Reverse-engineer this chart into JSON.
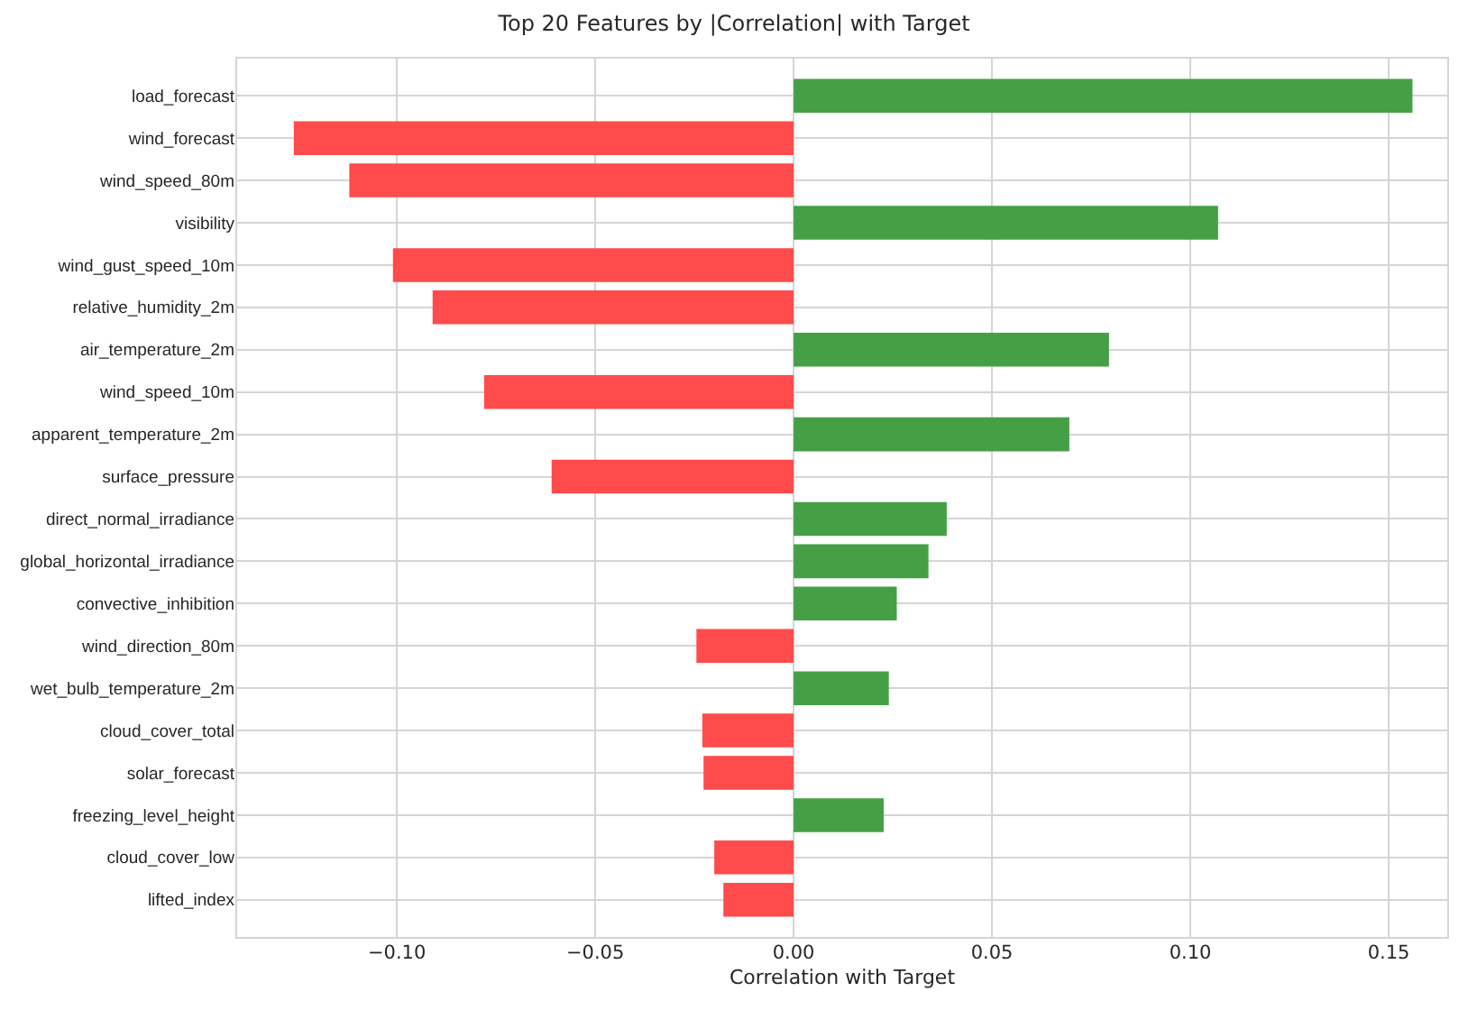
{
  "chart_data": {
    "type": "bar",
    "orientation": "horizontal",
    "title": "Top 20 Features by |Correlation| with Target",
    "xlabel": "Correlation with Target",
    "categories": [
      "load_forecast",
      "wind_forecast",
      "wind_speed_80m",
      "visibility",
      "wind_gust_speed_10m",
      "relative_humidity_2m",
      "air_temperature_2m",
      "wind_speed_10m",
      "apparent_temperature_2m",
      "surface_pressure",
      "direct_normal_irradiance",
      "global_horizontal_irradiance",
      "convective_inhibition",
      "wind_direction_80m",
      "wet_bulb_temperature_2m",
      "cloud_cover_total",
      "solar_forecast",
      "freezing_level_height",
      "cloud_cover_low",
      "lifted_index"
    ],
    "values": [
      0.156,
      -0.126,
      -0.112,
      0.107,
      -0.101,
      -0.091,
      0.0795,
      -0.078,
      0.0695,
      -0.061,
      0.0386,
      0.034,
      0.026,
      -0.0245,
      0.024,
      -0.023,
      -0.0227,
      0.0227,
      -0.02,
      -0.0177
    ],
    "colors": [
      "#45a045",
      "#ff4b4b",
      "#ff4b4b",
      "#45a045",
      "#ff4b4b",
      "#ff4b4b",
      "#45a045",
      "#ff4b4b",
      "#45a045",
      "#ff4b4b",
      "#45a045",
      "#45a045",
      "#45a045",
      "#ff4b4b",
      "#45a045",
      "#ff4b4b",
      "#ff4b4b",
      "#45a045",
      "#ff4b4b",
      "#ff4b4b"
    ],
    "xlim": [
      -0.1405,
      0.165
    ],
    "xticks": [
      {
        "value": -0.1,
        "label": "−0.10"
      },
      {
        "value": -0.05,
        "label": "−0.05"
      },
      {
        "value": 0,
        "label": "0.00"
      },
      {
        "value": 0.05,
        "label": "0.05"
      },
      {
        "value": 0.1,
        "label": "0.10"
      },
      {
        "value": 0.15,
        "label": "0.15"
      }
    ],
    "grid": true
  }
}
